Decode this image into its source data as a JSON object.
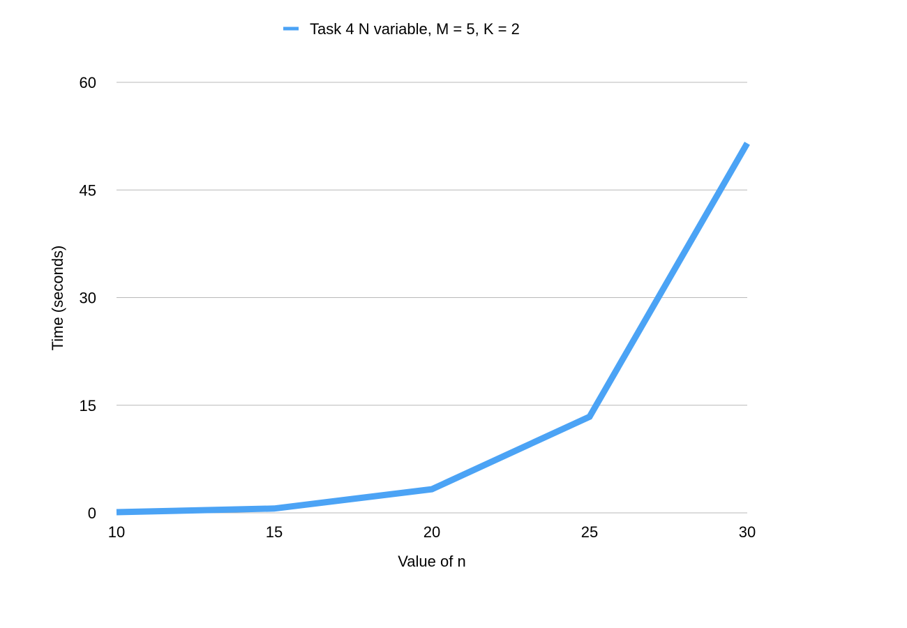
{
  "chart_data": {
    "type": "line",
    "title": "",
    "xlabel": "Value of n",
    "ylabel": "Time (seconds)",
    "x": [
      10,
      15,
      20,
      25,
      30
    ],
    "xlim": [
      10,
      30
    ],
    "ylim": [
      0,
      60
    ],
    "x_ticks": [
      "10",
      "15",
      "20",
      "25",
      "30"
    ],
    "y_ticks": [
      "0",
      "15",
      "30",
      "45",
      "60"
    ],
    "grid": "horizontal",
    "legend_position": "top",
    "series": [
      {
        "name": "Task 4 N variable, M = 5, K = 2",
        "color": "#4ba3f5",
        "values": [
          0.1,
          0.6,
          3.3,
          13.4,
          51.5
        ]
      }
    ]
  }
}
